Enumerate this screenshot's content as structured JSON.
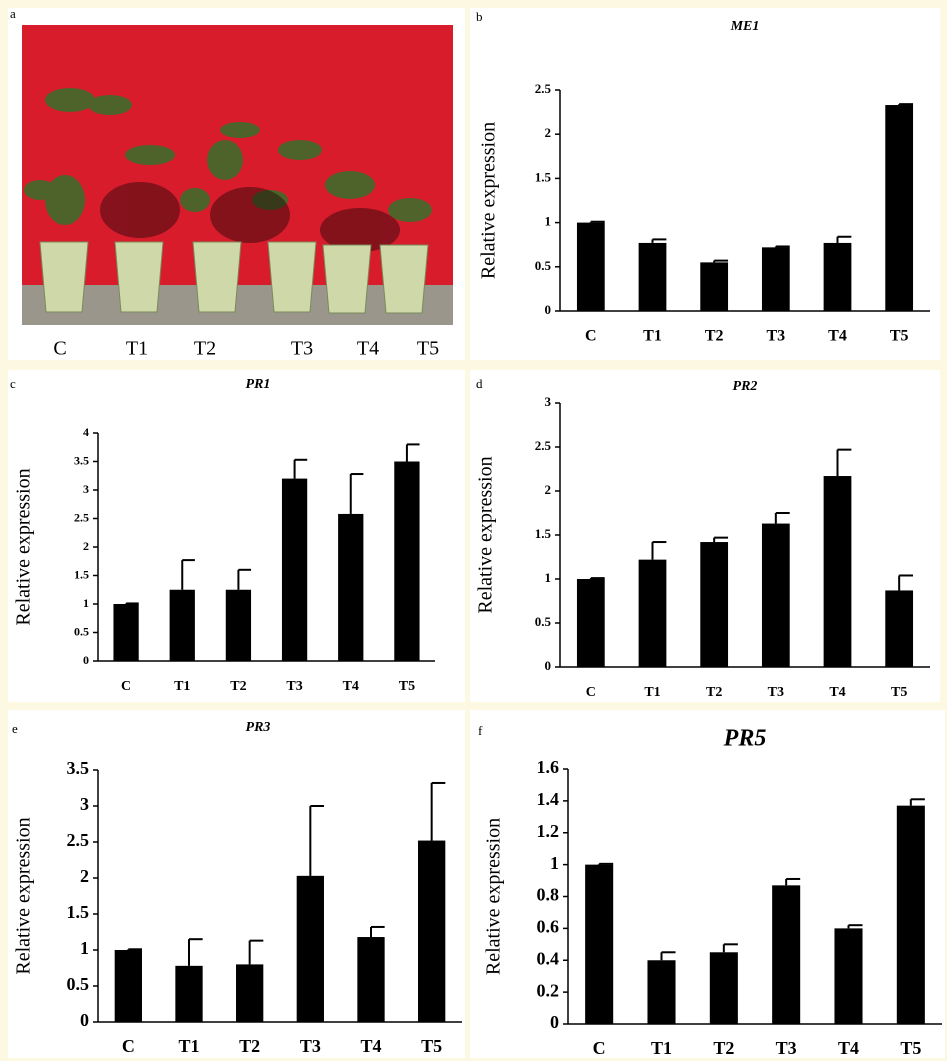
{
  "panel_labels": [
    "a",
    "b",
    "c",
    "d",
    "e",
    "f"
  ],
  "photo": {
    "labels": [
      "C",
      "T1",
      "T2",
      "T3",
      "T4",
      "T5"
    ]
  },
  "chart_data": [
    {
      "type": "bar",
      "title": "ME1",
      "y_label": "Relative expression",
      "categories": [
        "C",
        "T1",
        "T2",
        "T3",
        "T4",
        "T5"
      ],
      "values": [
        1.0,
        0.77,
        0.55,
        0.72,
        0.77,
        2.33
      ],
      "errors": [
        0.01,
        0.04,
        0.02,
        0.01,
        0.07,
        0.01
      ],
      "color": "#000000",
      "ylim": [
        0,
        2.5
      ],
      "yticks": [
        0,
        0.5,
        1,
        1.5,
        2,
        2.5
      ]
    },
    {
      "type": "bar",
      "title": "PR1",
      "y_label": "Relative expression",
      "categories": [
        "C",
        "T1",
        "T2",
        "T3",
        "T4",
        "T5"
      ],
      "values": [
        1.0,
        1.25,
        1.25,
        3.2,
        2.58,
        3.5
      ],
      "errors": [
        0.01,
        0.52,
        0.35,
        0.33,
        0.7,
        0.3
      ],
      "color": "#000000",
      "ylim": [
        0,
        4
      ],
      "yticks": [
        0,
        0.5,
        1,
        1.5,
        2,
        2.5,
        3,
        3.5,
        4
      ]
    },
    {
      "type": "bar",
      "title": "PR2",
      "y_label": "Relative expression",
      "categories": [
        "C",
        "T1",
        "T2",
        "T3",
        "T4",
        "T5"
      ],
      "values": [
        1.0,
        1.22,
        1.42,
        1.63,
        2.17,
        0.87
      ],
      "errors": [
        0.01,
        0.2,
        0.05,
        0.12,
        0.3,
        0.17
      ],
      "color": "#000000",
      "ylim": [
        0,
        3
      ],
      "yticks": [
        0,
        0.5,
        1,
        1.5,
        2,
        2.5,
        3
      ]
    },
    {
      "type": "bar",
      "title": "PR3",
      "y_label": "Relative expression",
      "categories": [
        "C",
        "T1",
        "T2",
        "T3",
        "T4",
        "T5"
      ],
      "values": [
        1.0,
        0.78,
        0.8,
        2.03,
        1.18,
        2.52
      ],
      "errors": [
        0.01,
        0.37,
        0.33,
        0.97,
        0.14,
        0.8
      ],
      "color": "#000000",
      "ylim": [
        0,
        3.5
      ],
      "yticks": [
        0,
        0.5,
        1,
        1.5,
        2,
        2.5,
        3,
        3.5
      ]
    },
    {
      "type": "bar",
      "title": "PR5",
      "y_label": "Relative expression",
      "categories": [
        "C",
        "T1",
        "T2",
        "T3",
        "T4",
        "T5"
      ],
      "values": [
        1.0,
        0.4,
        0.45,
        0.87,
        0.6,
        1.37
      ],
      "errors": [
        0.005,
        0.05,
        0.05,
        0.04,
        0.02,
        0.04
      ],
      "color": "#000000",
      "ylim": [
        0,
        1.6
      ],
      "yticks": [
        0,
        0.2,
        0.4,
        0.6,
        0.8,
        1,
        1.2,
        1.4,
        1.6
      ]
    }
  ]
}
